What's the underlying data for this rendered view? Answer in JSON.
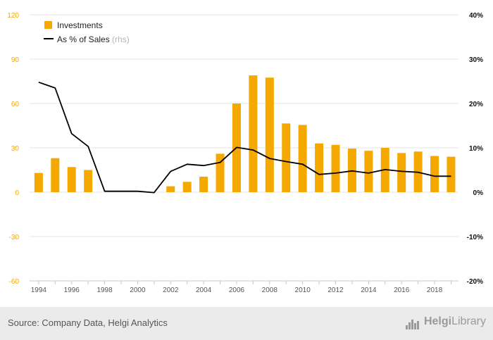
{
  "chart_data": {
    "type": "bar",
    "title": "",
    "x": [
      1994,
      1995,
      1996,
      1997,
      1998,
      1999,
      2000,
      2001,
      2002,
      2003,
      2004,
      2005,
      2006,
      2007,
      2008,
      2009,
      2010,
      2011,
      2012,
      2013,
      2014,
      2015,
      2016,
      2017,
      2018,
      2019
    ],
    "x_tick_labels": [
      "1994",
      "1996",
      "1998",
      "2000",
      "2002",
      "2004",
      "2006",
      "2008",
      "2010",
      "2012",
      "2014",
      "2016",
      "2018"
    ],
    "y_left_ticks": [
      "120",
      "90",
      "60",
      "30",
      "0",
      "-30",
      "-60"
    ],
    "y_right_ticks": [
      "40%",
      "30%",
      "20%",
      "10%",
      "0%",
      "-10%",
      "-20%"
    ],
    "ylim_left": [
      -60,
      120
    ],
    "ylim_right": [
      -20,
      40
    ],
    "grid": true,
    "legend_position": "top-left",
    "series": [
      {
        "name": "Investments",
        "kind": "bar",
        "axis": "left",
        "color": "#f5a800",
        "values": [
          13,
          23,
          17,
          15,
          0,
          0,
          0,
          0,
          4,
          7,
          10.5,
          26,
          60,
          79,
          77.5,
          46.5,
          45.5,
          33,
          32,
          29.5,
          28,
          30,
          26.5,
          27.5,
          24.5,
          24
        ]
      },
      {
        "name": "As % of Sales",
        "name_note": "(rhs)",
        "kind": "line",
        "axis": "right",
        "color": "#000000",
        "values": [
          24.8,
          23.5,
          13.2,
          10.3,
          0.2,
          0.2,
          0.2,
          -0.1,
          4.7,
          6.3,
          6.0,
          6.7,
          10.1,
          9.5,
          7.6,
          6.9,
          6.3,
          4.0,
          4.3,
          4.8,
          4.3,
          5.1,
          4.7,
          4.5,
          3.6,
          3.6
        ]
      }
    ]
  },
  "footer": {
    "source": "Source: Company Data, Helgi Analytics",
    "logo_text_bold": "Helgi",
    "logo_text_light": "Library"
  }
}
